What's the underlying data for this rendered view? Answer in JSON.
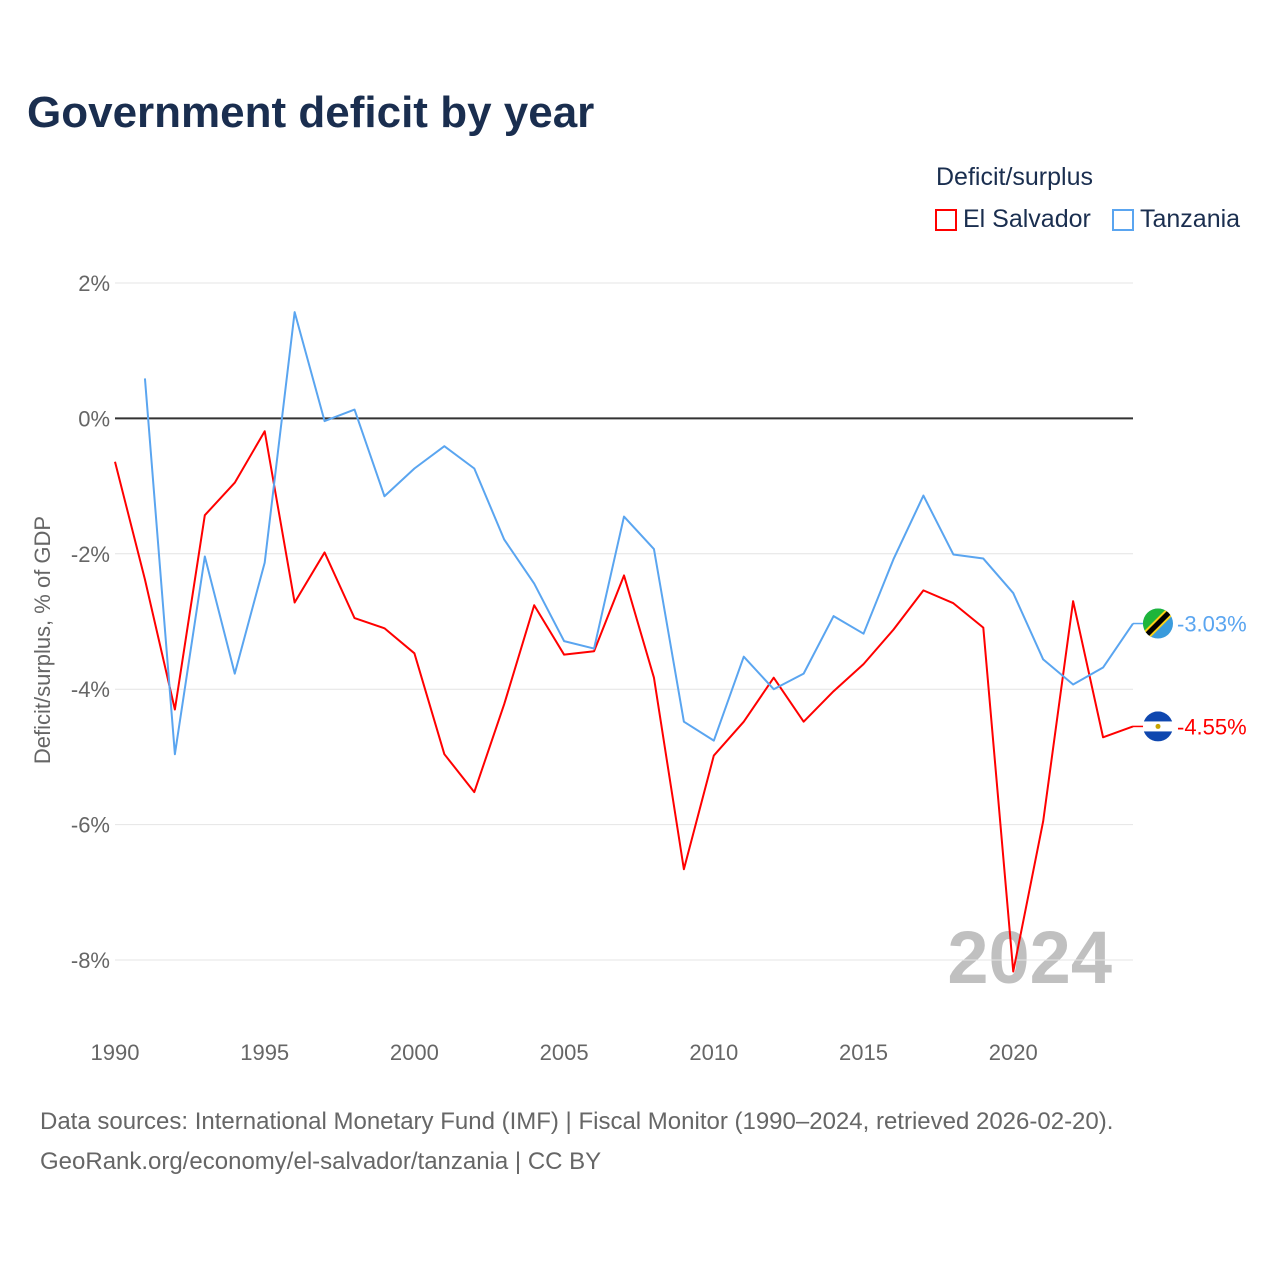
{
  "title": "Government deficit by year",
  "legend": {
    "title": "Deficit/surplus",
    "items": [
      {
        "label": "El Salvador",
        "color": "#ff0000"
      },
      {
        "label": "Tanzania",
        "color": "#5aa5f0"
      }
    ]
  },
  "footer": {
    "line1": "Data sources: International Monetary Fund (IMF) | Fiscal Monitor (1990–2024, retrieved 2026-02-20).",
    "line2": "GeoRank.org/economy/el-salvador/tanzania | CC BY"
  },
  "chart_data": {
    "type": "line",
    "title": "Government deficit by year",
    "xlabel": "",
    "ylabel": "Deficit/surplus, % of GDP",
    "xlim": [
      1990,
      2024
    ],
    "ylim": [
      -9,
      2
    ],
    "x_ticks": [
      "1990",
      "1995",
      "2000",
      "2005",
      "2010",
      "2015",
      "2020"
    ],
    "y_ticks": [
      "2%",
      "0%",
      "-2%",
      "-4%",
      "-6%",
      "-8%"
    ],
    "year_watermark": "2024",
    "series": [
      {
        "name": "El Salvador",
        "color": "#ff0000",
        "end_label": "-4.55%",
        "x": [
          1990,
          1991,
          1992,
          1993,
          1994,
          1995,
          1996,
          1997,
          1998,
          1999,
          2000,
          2001,
          2002,
          2003,
          2004,
          2005,
          2006,
          2007,
          2008,
          2009,
          2010,
          2011,
          2012,
          2013,
          2014,
          2015,
          2016,
          2017,
          2018,
          2019,
          2020,
          2021,
          2022,
          2023,
          2024
        ],
        "values": [
          -0.64,
          -2.38,
          -4.3,
          -1.43,
          -0.95,
          -0.19,
          -2.72,
          -1.98,
          -2.95,
          -3.1,
          -3.47,
          -4.96,
          -5.52,
          -4.22,
          -2.76,
          -3.49,
          -3.44,
          -2.32,
          -3.83,
          -6.66,
          -4.98,
          -4.48,
          -3.83,
          -4.48,
          -4.03,
          -3.63,
          -3.12,
          -2.54,
          -2.73,
          -3.09,
          -8.17,
          -5.95,
          -2.7,
          -4.71,
          -4.55
        ]
      },
      {
        "name": "Tanzania",
        "color": "#5aa5f0",
        "end_label": "-3.03%",
        "x": [
          1991,
          1992,
          1993,
          1994,
          1995,
          1996,
          1997,
          1998,
          1999,
          2000,
          2001,
          2002,
          2003,
          2004,
          2005,
          2006,
          2007,
          2008,
          2009,
          2010,
          2011,
          2012,
          2013,
          2014,
          2015,
          2016,
          2017,
          2018,
          2019,
          2020,
          2021,
          2022,
          2023,
          2024
        ],
        "values": [
          0.59,
          -4.96,
          -2.04,
          -3.77,
          -2.13,
          1.57,
          -0.04,
          0.13,
          -1.15,
          -0.74,
          -0.41,
          -0.74,
          -1.79,
          -2.44,
          -3.29,
          -3.4,
          -1.45,
          -1.93,
          -4.48,
          -4.76,
          -3.52,
          -4.0,
          -3.77,
          -2.92,
          -3.18,
          -2.08,
          -1.14,
          -2.01,
          -2.07,
          -2.58,
          -3.56,
          -3.93,
          -3.68,
          -3.03
        ]
      }
    ]
  }
}
